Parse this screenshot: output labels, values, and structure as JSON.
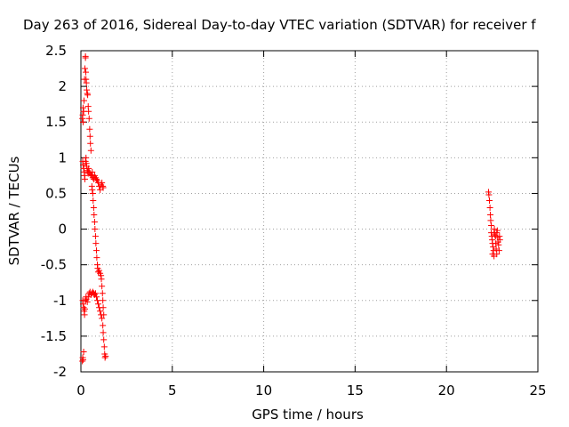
{
  "chart_data": {
    "type": "scatter",
    "title": "Day 263 of 2016, Sidereal Day-to-day VTEC variation (SDTVAR) for receiver f",
    "xlabel": "GPS time / hours",
    "ylabel": "SDTVAR / TECUs",
    "xlim": [
      0,
      25
    ],
    "ylim": [
      -2,
      2.5
    ],
    "xticks": [
      "0",
      "5",
      "10",
      "15",
      "20",
      "25"
    ],
    "yticks": [
      "2.5",
      "2",
      "1.5",
      "1",
      "0.5",
      "0",
      "-0.5",
      "-1",
      "-1.5",
      "-2"
    ],
    "grid": true,
    "marker": "+",
    "color": "#ff0000",
    "series": [
      {
        "points": [
          [
            0.08,
            1.55
          ],
          [
            0.1,
            1.6
          ],
          [
            0.12,
            1.7
          ],
          [
            0.12,
            1.5
          ],
          [
            0.15,
            1.65
          ],
          [
            0.17,
            1.8
          ],
          [
            0.08,
            -1.85
          ],
          [
            0.1,
            -1.8
          ],
          [
            0.15,
            -1.72
          ],
          [
            0.12,
            -1.83
          ],
          [
            0.2,
            2.1
          ],
          [
            0.22,
            2.25
          ],
          [
            0.25,
            2.4
          ],
          [
            0.25,
            2.42
          ],
          [
            0.27,
            2.2
          ],
          [
            0.28,
            2.1
          ],
          [
            0.3,
            2.05
          ],
          [
            0.32,
            1.95
          ],
          [
            0.35,
            1.9
          ],
          [
            0.37,
            1.88
          ],
          [
            0.4,
            1.72
          ],
          [
            0.42,
            1.65
          ],
          [
            0.45,
            1.55
          ],
          [
            0.48,
            1.4
          ],
          [
            0.5,
            1.3
          ],
          [
            0.52,
            1.2
          ],
          [
            0.55,
            1.1
          ],
          [
            0.1,
            0.95
          ],
          [
            0.12,
            0.9
          ],
          [
            0.15,
            0.85
          ],
          [
            0.18,
            0.8
          ],
          [
            0.2,
            0.75
          ],
          [
            0.22,
            0.7
          ],
          [
            0.25,
            0.95
          ],
          [
            0.28,
            1.0
          ],
          [
            0.3,
            0.92
          ],
          [
            0.32,
            0.88
          ],
          [
            0.35,
            0.82
          ],
          [
            0.38,
            0.8
          ],
          [
            0.4,
            0.78
          ],
          [
            0.42,
            0.85
          ],
          [
            0.45,
            0.8
          ],
          [
            0.5,
            0.78
          ],
          [
            0.55,
            0.76
          ],
          [
            0.6,
            0.75
          ],
          [
            0.62,
            0.8
          ],
          [
            0.65,
            0.72
          ],
          [
            0.7,
            0.7
          ],
          [
            0.75,
            0.75
          ],
          [
            0.8,
            0.72
          ],
          [
            0.85,
            0.7
          ],
          [
            0.9,
            0.68
          ],
          [
            0.95,
            0.65
          ],
          [
            1.0,
            0.6
          ],
          [
            1.05,
            0.55
          ],
          [
            1.1,
            0.62
          ],
          [
            1.15,
            0.65
          ],
          [
            1.2,
            0.6
          ],
          [
            1.22,
            0.58
          ],
          [
            0.6,
            0.6
          ],
          [
            0.62,
            0.55
          ],
          [
            0.65,
            0.5
          ],
          [
            0.67,
            0.4
          ],
          [
            0.7,
            0.3
          ],
          [
            0.72,
            0.2
          ],
          [
            0.75,
            0.1
          ],
          [
            0.77,
            0.0
          ],
          [
            0.8,
            -0.1
          ],
          [
            0.82,
            -0.2
          ],
          [
            0.85,
            -0.3
          ],
          [
            0.87,
            -0.4
          ],
          [
            0.9,
            -0.5
          ],
          [
            0.92,
            -0.55
          ],
          [
            0.95,
            -0.6
          ],
          [
            1.0,
            -0.58
          ],
          [
            1.05,
            -0.62
          ],
          [
            1.1,
            -0.65
          ],
          [
            1.12,
            -0.7
          ],
          [
            1.15,
            -0.8
          ],
          [
            1.18,
            -0.9
          ],
          [
            1.2,
            -1.0
          ],
          [
            1.22,
            -1.1
          ],
          [
            1.25,
            -1.2
          ],
          [
            0.1,
            -1.0
          ],
          [
            0.12,
            -1.05
          ],
          [
            0.15,
            -1.1
          ],
          [
            0.18,
            -1.15
          ],
          [
            0.2,
            -1.2
          ],
          [
            0.22,
            -1.12
          ],
          [
            0.25,
            -1.0
          ],
          [
            0.28,
            -0.95
          ],
          [
            0.3,
            -0.98
          ],
          [
            0.35,
            -1.02
          ],
          [
            0.4,
            -0.95
          ],
          [
            0.45,
            -0.9
          ],
          [
            0.5,
            -0.88
          ],
          [
            0.55,
            -0.92
          ],
          [
            0.6,
            -0.9
          ],
          [
            0.65,
            -0.88
          ],
          [
            0.7,
            -0.9
          ],
          [
            0.75,
            -0.92
          ],
          [
            0.8,
            -0.9
          ],
          [
            0.85,
            -0.95
          ],
          [
            0.9,
            -1.0
          ],
          [
            0.95,
            -1.05
          ],
          [
            1.0,
            -1.1
          ],
          [
            1.05,
            -1.15
          ],
          [
            1.1,
            -1.2
          ],
          [
            1.15,
            -1.25
          ],
          [
            1.2,
            -1.35
          ],
          [
            1.22,
            -1.45
          ],
          [
            1.25,
            -1.55
          ],
          [
            1.28,
            -1.65
          ],
          [
            1.3,
            -1.75
          ],
          [
            1.32,
            -1.8
          ],
          [
            1.35,
            -1.78
          ],
          [
            22.3,
            0.52
          ],
          [
            22.32,
            0.48
          ],
          [
            22.35,
            0.4
          ],
          [
            22.38,
            0.3
          ],
          [
            22.4,
            0.2
          ],
          [
            22.42,
            0.12
          ],
          [
            22.45,
            0.05
          ],
          [
            22.45,
            -0.05
          ],
          [
            22.48,
            -0.1
          ],
          [
            22.5,
            -0.15
          ],
          [
            22.52,
            -0.2
          ],
          [
            22.55,
            -0.25
          ],
          [
            22.58,
            -0.3
          ],
          [
            22.6,
            -0.05
          ],
          [
            22.62,
            0.0
          ],
          [
            22.65,
            -0.08
          ],
          [
            22.68,
            -0.1
          ],
          [
            22.7,
            -0.2
          ],
          [
            22.72,
            -0.28
          ],
          [
            22.75,
            -0.05
          ],
          [
            22.78,
            -0.02
          ],
          [
            22.8,
            -0.12
          ],
          [
            22.82,
            -0.18
          ],
          [
            22.85,
            -0.22
          ],
          [
            22.88,
            -0.3
          ],
          [
            22.9,
            -0.1
          ],
          [
            22.92,
            -0.15
          ],
          [
            22.52,
            -0.35
          ],
          [
            22.6,
            -0.38
          ],
          [
            22.75,
            -0.35
          ]
        ]
      }
    ]
  }
}
